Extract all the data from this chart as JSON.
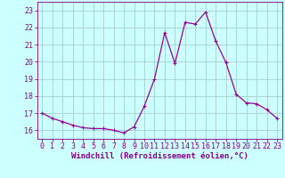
{
  "x": [
    0,
    1,
    2,
    3,
    4,
    5,
    6,
    7,
    8,
    9,
    10,
    11,
    12,
    13,
    14,
    15,
    16,
    17,
    18,
    19,
    20,
    21,
    22,
    23
  ],
  "y": [
    17.0,
    16.7,
    16.5,
    16.3,
    16.15,
    16.1,
    16.1,
    16.0,
    15.85,
    16.2,
    17.4,
    19.0,
    21.7,
    19.9,
    22.3,
    22.2,
    22.9,
    21.2,
    19.95,
    18.1,
    17.6,
    17.55,
    17.2,
    16.7
  ],
  "line_color": "#990099",
  "marker": "+",
  "marker_size": 3,
  "marker_linewidth": 0.8,
  "line_width": 0.9,
  "bg_color": "#ccffff",
  "grid_color": "#aacccc",
  "xlabel": "Windchill (Refroidissement éolien,°C)",
  "xlabel_color": "#880088",
  "tick_color": "#880088",
  "ylim": [
    15.5,
    23.5
  ],
  "yticks": [
    16,
    17,
    18,
    19,
    20,
    21,
    22,
    23
  ],
  "xlim": [
    -0.5,
    23.5
  ],
  "xticks": [
    0,
    1,
    2,
    3,
    4,
    5,
    6,
    7,
    8,
    9,
    10,
    11,
    12,
    13,
    14,
    15,
    16,
    17,
    18,
    19,
    20,
    21,
    22,
    23
  ],
  "tick_fontsize": 6,
  "xlabel_fontsize": 6.5
}
